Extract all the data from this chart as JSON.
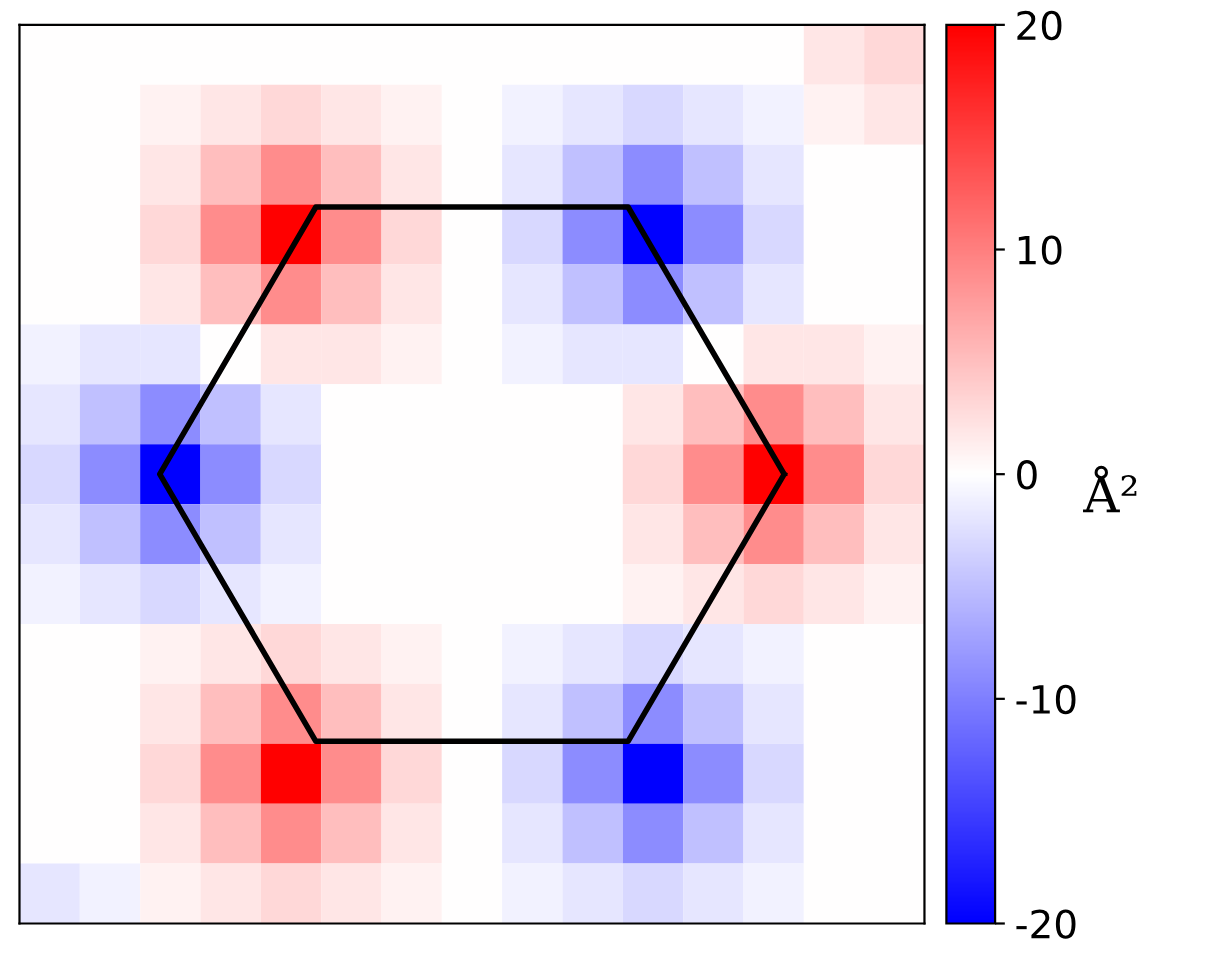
{
  "chart_data": {
    "type": "heatmap",
    "clabel": "Å²",
    "clim": [
      -20,
      20
    ],
    "cticks": [
      -20,
      -10,
      0,
      10,
      20
    ],
    "tick_labels": false,
    "categories": [
      null,
      null,
      null,
      null,
      null,
      null,
      null,
      null,
      null,
      null,
      null,
      null,
      null,
      null,
      null
    ],
    "y_categories": [
      null,
      null,
      null,
      null,
      null,
      null,
      null,
      null,
      null,
      null,
      null,
      null,
      null,
      null,
      null
    ],
    "cells": [
      [
        0,
        0,
        0,
        0,
        0,
        0,
        0,
        0,
        0,
        0,
        0,
        0,
        0,
        2,
        3
      ],
      [
        0,
        0,
        1,
        2,
        3,
        2,
        1,
        0,
        -1,
        -2,
        -3,
        -2,
        -1,
        1,
        2
      ],
      [
        0,
        0,
        2,
        5,
        9,
        5,
        2,
        0,
        -2,
        -5,
        -9,
        -5,
        -2,
        0,
        0
      ],
      [
        0,
        0,
        3,
        9,
        20,
        9,
        3,
        0,
        -3,
        -9,
        -20,
        -9,
        -3,
        0,
        0
      ],
      [
        0,
        0,
        2,
        5,
        9,
        5,
        2,
        0,
        -2,
        -5,
        -9,
        -5,
        -2,
        0,
        0
      ],
      [
        -1,
        -2,
        -2,
        0,
        2,
        2,
        1,
        0,
        -1,
        -2,
        -2,
        0,
        2,
        2,
        1
      ],
      [
        -2,
        -5,
        -9,
        -5,
        -2,
        0,
        0,
        0,
        0,
        0,
        2,
        5,
        9,
        5,
        2
      ],
      [
        -3,
        -9,
        -20,
        -9,
        -3,
        0,
        0,
        0,
        0,
        0,
        3,
        9,
        20,
        9,
        3
      ],
      [
        -2,
        -5,
        -9,
        -5,
        -2,
        0,
        0,
        0,
        0,
        0,
        2,
        5,
        9,
        5,
        2
      ],
      [
        -1,
        -2,
        -3,
        -2,
        -1,
        0,
        0,
        0,
        0,
        0,
        1,
        2,
        3,
        2,
        1
      ],
      [
        0,
        0,
        1,
        2,
        3,
        2,
        1,
        0,
        -1,
        -2,
        -3,
        -2,
        -1,
        0,
        0
      ],
      [
        0,
        0,
        2,
        5,
        9,
        5,
        2,
        0,
        -2,
        -5,
        -9,
        -5,
        -2,
        0,
        0
      ],
      [
        0,
        0,
        3,
        9,
        20,
        9,
        3,
        0,
        -3,
        -9,
        -20,
        -9,
        -3,
        0,
        0
      ],
      [
        0,
        0,
        2,
        5,
        9,
        5,
        2,
        0,
        -2,
        -5,
        -9,
        -5,
        -2,
        0,
        0
      ],
      [
        -2,
        -1,
        1,
        2,
        3,
        2,
        1,
        0,
        -1,
        -2,
        -3,
        -2,
        -1,
        0,
        0
      ]
    ]
  }
}
